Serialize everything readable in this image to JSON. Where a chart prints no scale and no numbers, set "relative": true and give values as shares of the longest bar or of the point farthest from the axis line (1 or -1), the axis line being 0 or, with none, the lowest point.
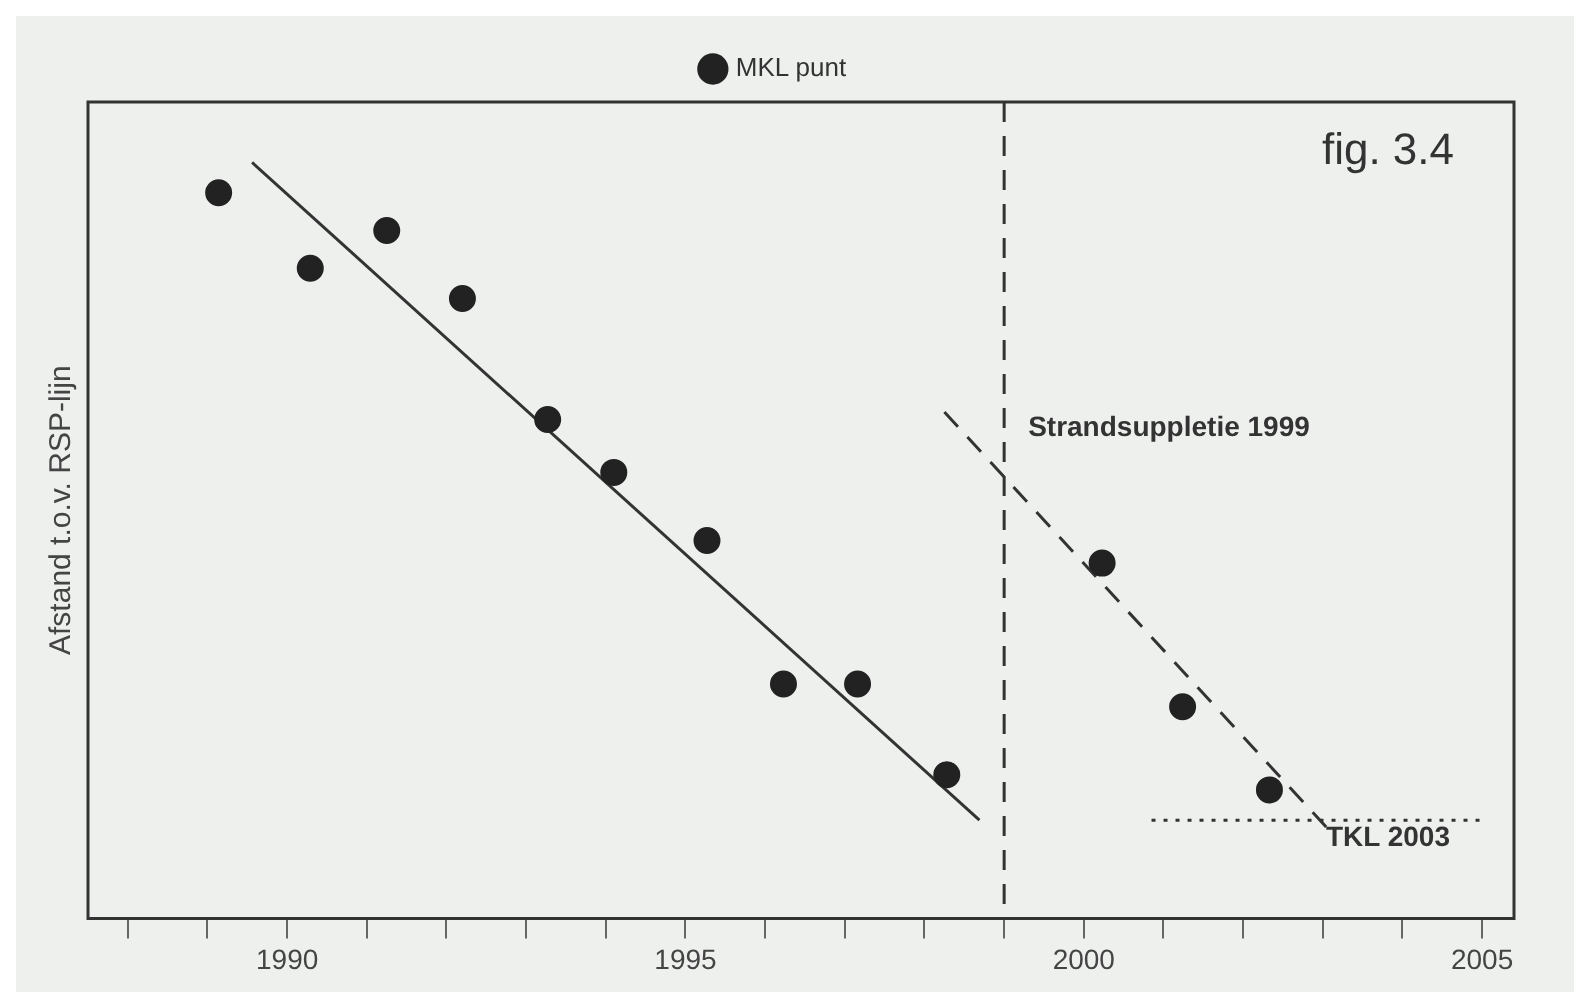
{
  "chart_data": {
    "type": "scatter",
    "title": "fig. 3.4",
    "ylabel": "Afstand t.o.v. RSP-lijn",
    "relative": true,
    "xlim": [
      1987.5,
      2005.4
    ],
    "xticks": [
      {
        "value": 1988,
        "label": null
      },
      {
        "value": 1989,
        "label": null
      },
      1990,
      {
        "value": 1991,
        "label": null
      },
      {
        "value": 1992,
        "label": null
      },
      {
        "value": 1993,
        "label": null
      },
      {
        "value": 1994,
        "label": null
      },
      1995,
      {
        "value": 1996,
        "label": null
      },
      {
        "value": 1997,
        "label": null
      },
      {
        "value": 1998,
        "label": null
      },
      {
        "value": 1999,
        "label": null
      },
      2000,
      {
        "value": 2001,
        "label": null
      },
      {
        "value": 2002,
        "label": null
      },
      {
        "value": 2003,
        "label": null
      },
      {
        "value": 2004,
        "label": null
      },
      2005
    ],
    "grid": false,
    "legend": "top",
    "series": [
      {
        "name": "MKL punt",
        "color": "#222222",
        "marker": "circle",
        "x": [
          1989.14,
          1990.29,
          1991.25,
          1992.2,
          1993.27,
          1994.1,
          1995.27,
          1996.23,
          1997.16,
          1998.28,
          2000.23,
          2001.24,
          2002.33
        ],
        "values": [
          0.96,
          0.86,
          0.91,
          0.82,
          0.66,
          0.59,
          0.5,
          0.31,
          0.31,
          0.19,
          0.47,
          0.28,
          0.17
        ]
      },
      {
        "type": "line",
        "color": "#333333",
        "marker": "none",
        "line_style": "solid",
        "x": [
          1989.56,
          1998.69
        ],
        "values": [
          1.0,
          0.13
        ]
      },
      {
        "type": "line",
        "color": "#333333",
        "marker": "none",
        "line_style": "dashed",
        "x": [
          1998.25,
          2003.05
        ],
        "values": [
          0.67,
          0.12
        ]
      },
      {
        "type": "line",
        "color": "#333333",
        "marker": "none",
        "line_style": "dotted",
        "x": [
          2000.85,
          2005.0
        ],
        "values": [
          0.13,
          0.13
        ]
      }
    ],
    "ref_lines": [
      {
        "axis": "x",
        "value": 1999,
        "label": "Strandsuppletie 1999",
        "color": "#333333",
        "line_style": "dashed"
      }
    ],
    "annotations": [
      "TKL 2003"
    ]
  }
}
